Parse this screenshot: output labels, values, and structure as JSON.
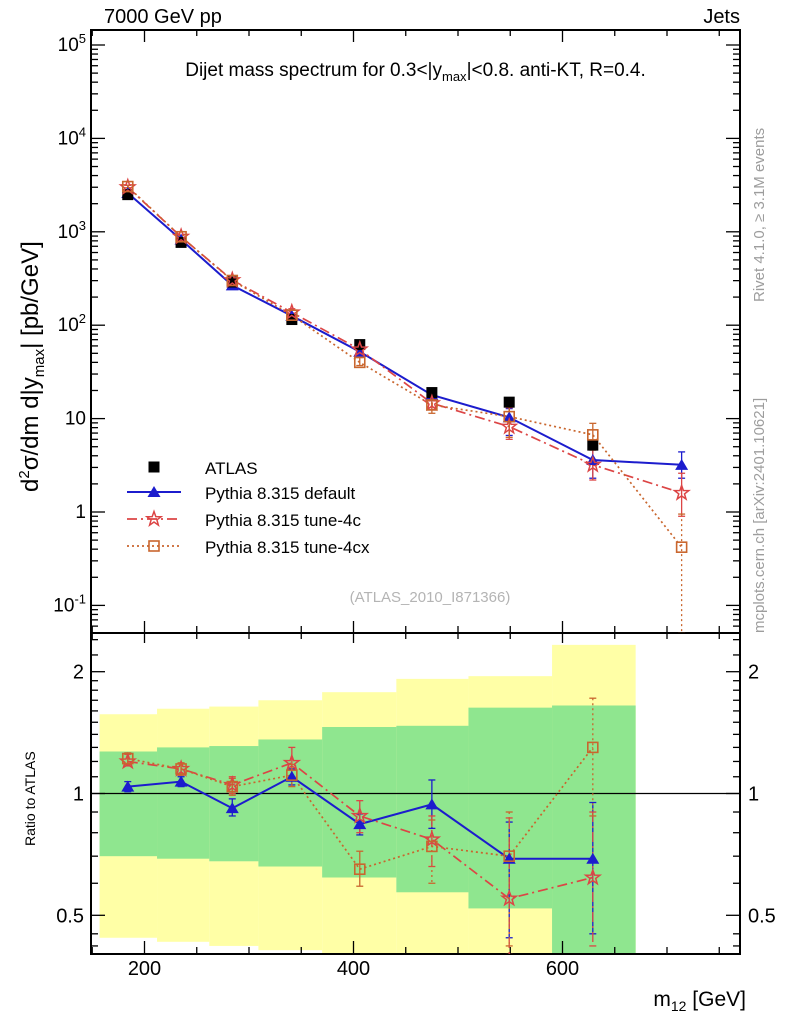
{
  "header": {
    "left": "7000 GeV pp",
    "right": "Jets"
  },
  "plot_title": {
    "pre": "Dijet mass spectrum for 0.3<|y",
    "sub": "max",
    "post": "|<0.8.  anti-KT, R=0.4."
  },
  "axes": {
    "y_label": {
      "p1": "d",
      "sup": "2",
      "p2": "σ/dm d|y",
      "sub": "max",
      "p3": "| [pb/GeV]"
    },
    "x_label": {
      "p1": "m",
      "sub": "12",
      "p2": " [GeV]"
    },
    "ratio_label": "Ratio to ATLAS",
    "x_ticks": [
      200,
      400,
      600
    ],
    "y_tick_exponents": [
      5,
      4,
      3,
      2,
      1,
      0,
      -1
    ],
    "ratio_ticks": [
      "2",
      "1",
      "0.5"
    ]
  },
  "side_notes": {
    "rivet": "Rivet 4.1.0, ≥ 3.1M events",
    "mcplots": "mcplots.cern.ch [arXiv:2401.10621]"
  },
  "watermark": "(ATLAS_2010_I871366)",
  "legend": [
    {
      "label": "ATLAS",
      "marker": "filled-square",
      "color": "#000000",
      "style": "none"
    },
    {
      "label": "Pythia 8.315 default",
      "marker": "triangle",
      "color": "#1c1ccd",
      "style": "solid"
    },
    {
      "label": "Pythia 8.315 tune-4c",
      "marker": "star",
      "color": "#dc4545",
      "style": "dashdot"
    },
    {
      "label": "Pythia 8.315 tune-4cx",
      "marker": "open-square",
      "color": "#c9662e",
      "style": "dotted"
    }
  ],
  "chart_data": {
    "type": "line",
    "title": "Dijet mass spectrum for 0.3<|ymax|<0.8. anti-KT, R=0.4.",
    "xlabel": "m12 [GeV]",
    "ylabel": "d2σ/dm d|ymax| [pb/GeV]",
    "ratio_ylabel": "Ratio to ATLAS",
    "xlim": [
      148,
      770
    ],
    "main_ylim": [
      0.051,
      145000
    ],
    "ratio_ylim": [
      0.4,
      2.49
    ],
    "x_points": [
      184,
      235,
      284,
      341,
      406,
      475,
      549,
      629,
      714
    ],
    "atlas": {
      "name": "ATLAS",
      "values": [
        2500,
        770,
        290,
        115,
        62,
        19,
        15,
        5.2
      ],
      "val_err": [
        [
          2420,
          2580
        ],
        [
          745,
          795
        ],
        [
          281,
          300
        ],
        [
          111,
          119
        ],
        [
          59,
          65
        ],
        [
          18,
          20
        ],
        [
          14,
          16
        ],
        [
          4.9,
          5.6
        ]
      ]
    },
    "series": [
      {
        "name": "Pythia 8.315 default",
        "color": "#1c1ccd",
        "style": "solid",
        "marker": "triangle",
        "values": [
          2600,
          825,
          267,
          126,
          52,
          17.9,
          10.3,
          3.6,
          3.2
        ],
        "val_err": [
          [
            2530,
            2680
          ],
          [
            800,
            845
          ],
          [
            255,
            281
          ],
          [
            121,
            130
          ],
          [
            49,
            55
          ],
          [
            15.6,
            20.5
          ],
          [
            6.6,
            12.8
          ],
          [
            2.3,
            5.0
          ],
          [
            2.3,
            4.4
          ]
        ],
        "ratio": [
          1.04,
          1.07,
          0.92,
          1.1,
          0.84,
          0.94,
          0.69,
          0.69
        ],
        "ratio_err": [
          [
            1.01,
            1.07
          ],
          [
            1.04,
            1.1
          ],
          [
            0.88,
            0.97
          ],
          [
            1.05,
            1.15
          ],
          [
            0.79,
            0.89
          ],
          [
            0.82,
            1.08
          ],
          [
            0.44,
            0.85
          ],
          [
            0.45,
            0.95
          ]
        ]
      },
      {
        "name": "Pythia 8.315 tune-4c",
        "color": "#dc4545",
        "style": "dashdot",
        "marker": "star",
        "values": [
          3000,
          885,
          304,
          137,
          55,
          14.6,
          8.2,
          3.2,
          1.6
        ],
        "val_err": [
          [
            2950,
            3150
          ],
          [
            855,
            915
          ],
          [
            290,
            316
          ],
          [
            126,
            150
          ],
          [
            50,
            60
          ],
          [
            12.5,
            16.7
          ],
          [
            6.0,
            13.1
          ],
          [
            2.2,
            4.7
          ],
          [
            0.9,
            2.6
          ]
        ],
        "ratio": [
          1.2,
          1.15,
          1.05,
          1.19,
          0.88,
          0.77,
          0.55,
          0.62
        ],
        "ratio_err": [
          [
            1.17,
            1.25
          ],
          [
            1.11,
            1.19
          ],
          [
            1.0,
            1.1
          ],
          [
            1.1,
            1.3
          ],
          [
            0.8,
            0.96
          ],
          [
            0.66,
            0.88
          ],
          [
            0.4,
            0.87
          ],
          [
            0.42,
            0.9
          ]
        ]
      },
      {
        "name": "Pythia 8.315 tune-4cx",
        "color": "#c9662e",
        "style": "dotted",
        "marker": "open-square",
        "values": [
          3050,
          885,
          301,
          128,
          40,
          14.0,
          10.5,
          6.7,
          0.42
        ],
        "val_err": [
          [
            2950,
            3150
          ],
          [
            855,
            915
          ],
          [
            287,
            313
          ],
          [
            120,
            134
          ],
          [
            37,
            45
          ],
          [
            11.4,
            16.3
          ],
          [
            6.3,
            13.5
          ],
          [
            4.6,
            8.9
          ],
          [
            0.05,
            0.95
          ]
        ],
        "ratio": [
          1.22,
          1.15,
          1.04,
          1.11,
          0.65,
          0.74,
          0.7,
          1.3
        ],
        "ratio_err": [
          [
            1.18,
            1.26
          ],
          [
            1.11,
            1.19
          ],
          [
            0.99,
            1.09
          ],
          [
            1.04,
            1.18
          ],
          [
            0.59,
            0.72
          ],
          [
            0.6,
            0.86
          ],
          [
            0.42,
            0.9
          ],
          [
            0.88,
            1.72
          ]
        ]
      }
    ],
    "bands": {
      "edges_m": [
        157,
        212,
        262,
        309,
        370,
        441,
        510,
        590,
        670
      ],
      "yellow_hi": [
        1.57,
        1.62,
        1.64,
        1.7,
        1.78,
        1.92,
        1.95,
        2.33
      ],
      "green_hi": [
        1.27,
        1.3,
        1.31,
        1.36,
        1.46,
        1.47,
        1.63,
        1.65
      ],
      "green_lo": [
        0.7,
        0.69,
        0.68,
        0.66,
        0.62,
        0.57,
        0.52,
        0.4
      ],
      "yellow_lo": [
        0.44,
        0.43,
        0.42,
        0.41,
        0.4,
        0.4,
        0.4,
        0.4
      ],
      "yellow_color": "#ffffa6",
      "green_color": "#8fe68f"
    },
    "ref_line": 1
  }
}
